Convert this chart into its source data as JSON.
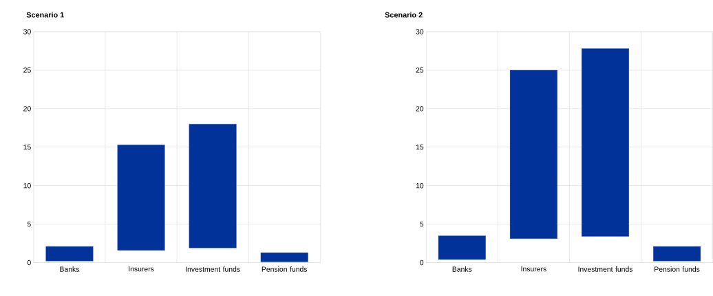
{
  "chart_data": [
    {
      "type": "bar",
      "title": "Scenario 1",
      "categories": [
        "Banks",
        "Insurers",
        "Investment funds",
        "Pension funds"
      ],
      "values": [
        1.9,
        13.7,
        16.1,
        1.2
      ],
      "base": [
        0.2,
        1.6,
        1.9,
        0.1
      ],
      "color": "#003299",
      "ylim": [
        0,
        30
      ],
      "yticks": [
        0,
        5,
        10,
        15,
        20,
        25,
        30
      ],
      "grid": true
    },
    {
      "type": "bar",
      "title": "Scenario 2",
      "categories": [
        "Banks",
        "Insurers",
        "Investment funds",
        "Pension funds"
      ],
      "values": [
        3.1,
        21.9,
        24.4,
        1.9
      ],
      "base": [
        0.4,
        3.1,
        3.4,
        0.2
      ],
      "color": "#003299",
      "ylim": [
        0,
        30
      ],
      "yticks": [
        0,
        5,
        10,
        15,
        20,
        25,
        30
      ],
      "grid": true
    }
  ]
}
